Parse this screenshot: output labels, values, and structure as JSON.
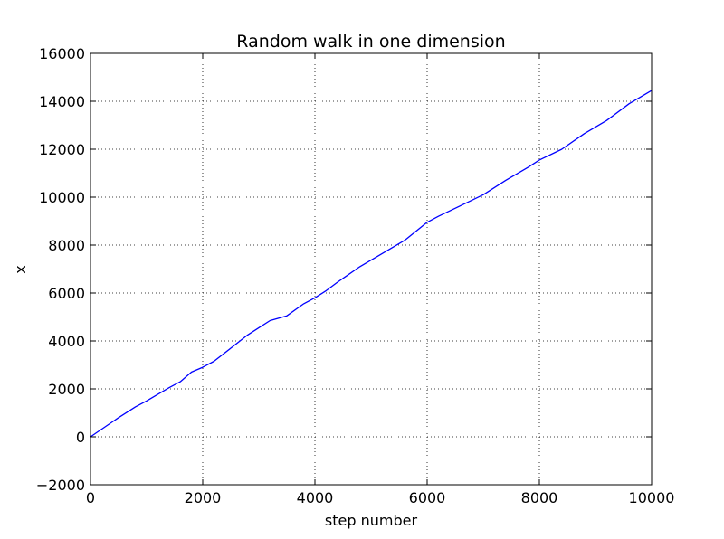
{
  "chart_data": {
    "type": "line",
    "title": "Random walk in one dimension",
    "xlabel": "step number",
    "ylabel": "x",
    "xlim": [
      0,
      10000
    ],
    "ylim": [
      -2000,
      16000
    ],
    "xticks": [
      0,
      2000,
      4000,
      6000,
      8000,
      10000
    ],
    "xtick_labels": [
      "0",
      "2000",
      "4000",
      "6000",
      "8000",
      "10000"
    ],
    "yticks": [
      -2000,
      0,
      2000,
      4000,
      6000,
      8000,
      10000,
      12000,
      14000,
      16000
    ],
    "ytick_labels": [
      "−2000",
      "0",
      "2000",
      "4000",
      "6000",
      "8000",
      "10000",
      "12000",
      "14000",
      "16000"
    ],
    "grid": true,
    "series": [
      {
        "color": "#0000ff",
        "x": [
          0,
          500,
          800,
          1000,
          1400,
          1600,
          1800,
          2000,
          2200,
          2500,
          2800,
          3000,
          3200,
          3500,
          3800,
          4000,
          4200,
          4400,
          4800,
          5200,
          5600,
          6000,
          6200,
          6600,
          7000,
          7400,
          7800,
          8000,
          8400,
          8800,
          9200,
          9600,
          10000
        ],
        "y": [
          0,
          800,
          1250,
          1500,
          2050,
          2300,
          2700,
          2900,
          3150,
          3700,
          4250,
          4550,
          4850,
          5050,
          5550,
          5800,
          6100,
          6450,
          7100,
          7650,
          8200,
          8950,
          9200,
          9650,
          10100,
          10700,
          11250,
          11550,
          12000,
          12650,
          13200,
          13900,
          14450
        ]
      }
    ]
  }
}
